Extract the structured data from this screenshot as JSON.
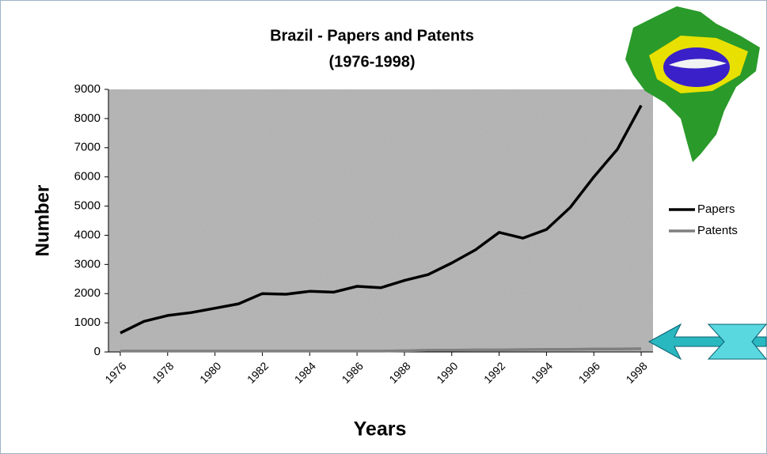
{
  "chart_data": {
    "type": "line",
    "title": "Brazil - Papers and Patents",
    "subtitle": "(1976-1998)",
    "x_label": "Years",
    "y_label": "Number",
    "x": [
      1976,
      1977,
      1978,
      1979,
      1980,
      1981,
      1982,
      1983,
      1984,
      1985,
      1986,
      1987,
      1988,
      1989,
      1990,
      1991,
      1992,
      1993,
      1994,
      1995,
      1996,
      1997,
      1998
    ],
    "series": [
      {
        "name": "Papers",
        "color": "#000000",
        "values": [
          650,
          1050,
          1250,
          1350,
          1500,
          1650,
          2000,
          1980,
          2080,
          2050,
          2250,
          2200,
          2450,
          2650,
          3050,
          3500,
          4100,
          3900,
          4200,
          4950,
          6000,
          6950,
          8450
        ]
      },
      {
        "name": "Patents",
        "color": "#7f7f7f",
        "values": [
          30,
          30,
          30,
          30,
          30,
          30,
          30,
          30,
          30,
          30,
          30,
          30,
          40,
          60,
          60,
          70,
          70,
          80,
          90,
          90,
          100,
          100,
          110
        ]
      }
    ],
    "xlim": [
      1975.5,
      1998.5
    ],
    "xticks": [
      1976,
      1978,
      1980,
      1982,
      1984,
      1986,
      1988,
      1990,
      1992,
      1994,
      1996,
      1998
    ],
    "ylim": [
      0,
      9000
    ],
    "yticks": [
      0,
      1000,
      2000,
      3000,
      4000,
      5000,
      6000,
      7000,
      8000,
      9000
    ],
    "legend": "right"
  }
}
